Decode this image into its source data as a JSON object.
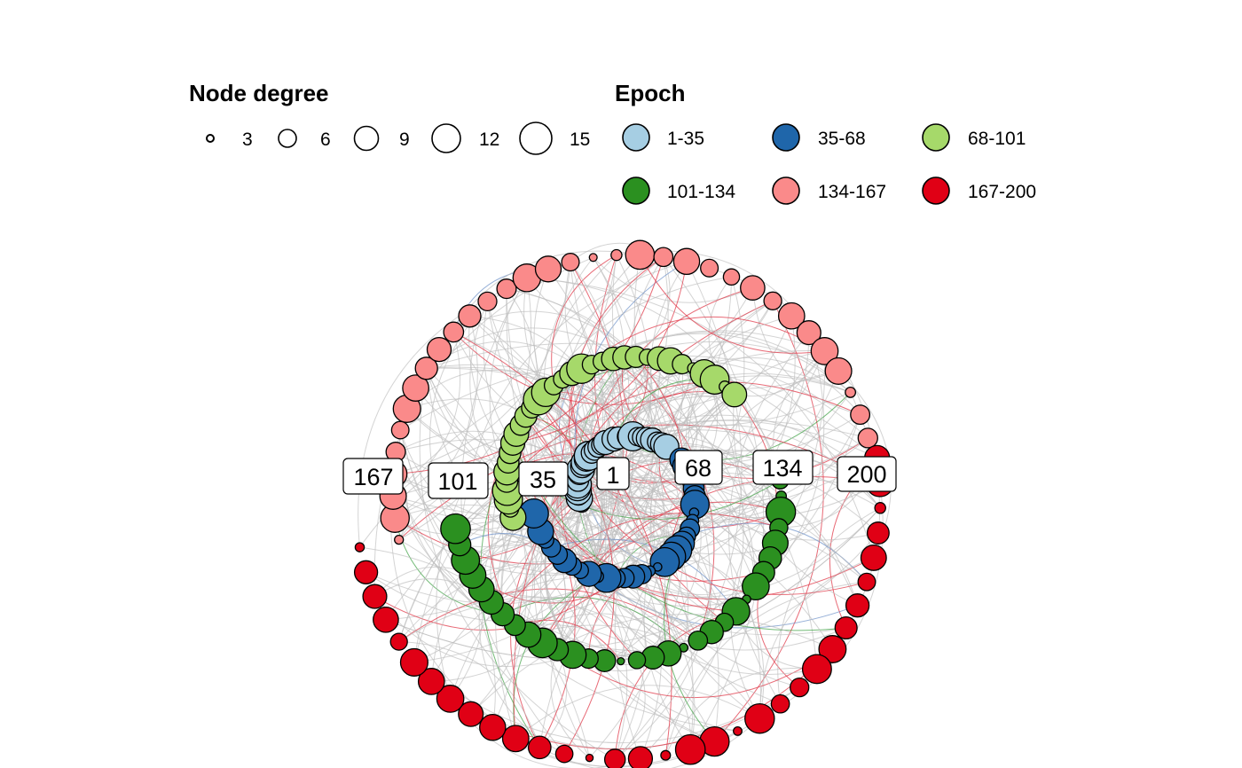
{
  "legends": {
    "degree": {
      "title": "Node degree",
      "items": [
        {
          "label": "3",
          "value": 3
        },
        {
          "label": "6",
          "value": 6
        },
        {
          "label": "9",
          "value": 9
        },
        {
          "label": "12",
          "value": 12
        },
        {
          "label": "15",
          "value": 15
        }
      ]
    },
    "epoch": {
      "title": "Epoch",
      "items": [
        {
          "label": "1-35",
          "color": "#a6cee3"
        },
        {
          "label": "35-68",
          "color": "#1f66aa"
        },
        {
          "label": "68-101",
          "color": "#a6d96a"
        },
        {
          "label": "101-134",
          "color": "#2b9020"
        },
        {
          "label": "134-167",
          "color": "#fa8a8a"
        },
        {
          "label": "167-200",
          "color": "#e00015"
        }
      ]
    }
  },
  "epoch_tags": [
    "1",
    "35",
    "68",
    "101",
    "134",
    "167",
    "200"
  ],
  "colors": {
    "edge_gray": "#bdbdbd",
    "edge_red": "#e03a4a",
    "edge_green": "#3aa040",
    "edge_blue": "#6a8fc8",
    "node_stroke": "#000000"
  }
}
